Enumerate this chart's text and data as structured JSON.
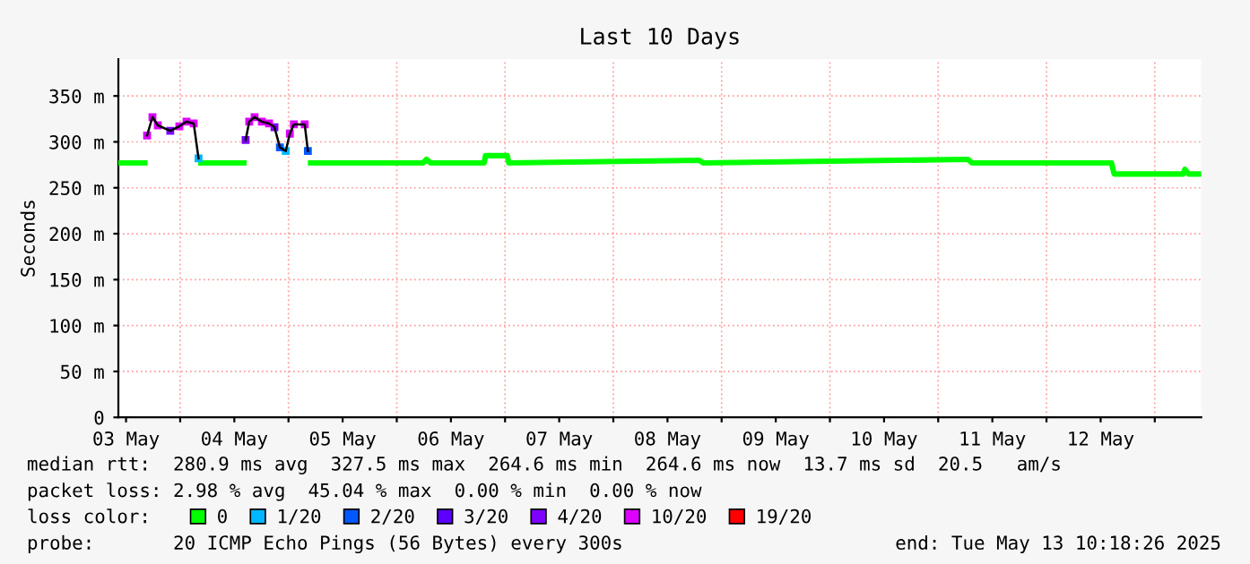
{
  "chart_data": {
    "type": "line",
    "title": "Last 10 Days",
    "ylabel": "Seconds",
    "x": [
      "2025-05-03T10:18",
      "2025-05-03T16:10",
      "2025-05-03T16:40",
      "2025-05-03T17:51",
      "2025-05-03T19:02",
      "2025-05-03T21:48",
      "2025-05-03T23:49",
      "2025-05-04T01:24",
      "2025-05-04T03:00",
      "2025-05-04T04:04",
      "2025-05-04T04:36",
      "2025-05-04T14:06",
      "2025-05-04T14:30",
      "2025-05-04T15:18",
      "2025-05-04T16:30",
      "2025-05-04T18:06",
      "2025-05-04T19:42",
      "2025-05-04T20:54",
      "2025-05-04T22:06",
      "2025-05-04T23:24",
      "2025-05-05T00:18",
      "2025-05-05T01:12",
      "2025-05-05T03:36",
      "2025-05-05T04:18",
      "2025-05-05T04:54",
      "2025-05-06T05:48",
      "2025-05-06T06:36",
      "2025-05-06T07:30",
      "2025-05-06T19:21",
      "2025-05-06T19:40",
      "2025-05-07T00:30",
      "2025-05-07T00:50",
      "2025-05-08T18:58",
      "2025-05-08T20:00",
      "2025-05-11T06:36",
      "2025-05-11T07:30",
      "2025-05-12T14:24",
      "2025-05-12T15:00",
      "2025-05-13T06:18",
      "2025-05-13T06:40",
      "2025-05-13T07:30",
      "2025-05-13T10:18"
    ],
    "series": [
      {
        "color": "#000000",
        "values": [
          null,
          null,
          307,
          327,
          318,
          312,
          317,
          322,
          320,
          282,
          null,
          null,
          302,
          322,
          327,
          322,
          320,
          316,
          294,
          290,
          309,
          319,
          319,
          290,
          null,
          null,
          null,
          null,
          null,
          null,
          null,
          null,
          null,
          null,
          null,
          null,
          null,
          null,
          null,
          null,
          null,
          null
        ]
      },
      {
        "name": "0",
        "color": "#00ff00",
        "values": [
          277,
          277,
          null,
          null,
          null,
          null,
          null,
          null,
          null,
          null,
          277,
          277,
          null,
          null,
          null,
          null,
          null,
          null,
          null,
          null,
          null,
          null,
          null,
          null,
          277,
          277,
          281,
          277,
          277,
          285,
          285,
          277,
          280,
          277,
          281,
          277,
          277,
          265,
          265,
          270,
          265,
          265
        ]
      },
      {
        "type": "scatter",
        "marker": "square",
        "name": "1/20",
        "color": "#00b8ff",
        "x": [
          "2025-05-04T04:04",
          "2025-05-04T23:24"
        ],
        "values": [
          282,
          290
        ]
      },
      {
        "type": "scatter",
        "marker": "square",
        "name": "2/20",
        "color": "#0059ff",
        "x": [
          "2025-05-04T22:06",
          "2025-05-05T04:18"
        ],
        "values": [
          294,
          290
        ]
      },
      {
        "type": "scatter",
        "name": "3/20",
        "color": "#5e00ff",
        "values": [
          null,
          null,
          null,
          null,
          null,
          null,
          null,
          null,
          null,
          null,
          null,
          null,
          null,
          null,
          null,
          null,
          null,
          null,
          null,
          null,
          null,
          null,
          null,
          null,
          null,
          null,
          null,
          null,
          null,
          null,
          null,
          null,
          null,
          null,
          null,
          null,
          null,
          null,
          null,
          null,
          null,
          null
        ]
      },
      {
        "type": "scatter",
        "marker": "square",
        "name": "4/20",
        "color": "#7e00ff",
        "x": [
          "2025-05-03T21:48",
          "2025-05-04T14:30",
          "2025-05-04T20:54"
        ],
        "values": [
          312,
          302,
          316
        ]
      },
      {
        "type": "scatter",
        "marker": "square",
        "name": "10/20",
        "color": "#dd00ff",
        "x": [
          "2025-05-03T16:40",
          "2025-05-03T17:51",
          "2025-05-03T19:02",
          "2025-05-03T23:49",
          "2025-05-04T01:24",
          "2025-05-04T03:00",
          "2025-05-04T15:18",
          "2025-05-04T16:30",
          "2025-05-04T18:06",
          "2025-05-04T19:42",
          "2025-05-05T00:18",
          "2025-05-05T01:12",
          "2025-05-05T03:36"
        ],
        "values": [
          307,
          327,
          318,
          317,
          322,
          320,
          322,
          327,
          322,
          320,
          309,
          319,
          319
        ]
      },
      {
        "type": "scatter",
        "name": "19/20",
        "color": "#ff0000",
        "values": [
          null,
          null,
          null,
          null,
          null,
          null,
          null,
          null,
          null,
          null,
          null,
          null,
          null,
          null,
          null,
          null,
          null,
          null,
          null,
          null,
          null,
          null,
          null,
          null,
          null,
          null,
          null,
          null,
          null,
          null,
          null,
          null,
          null,
          null,
          null,
          null,
          null,
          null,
          null,
          null,
          null,
          null
        ]
      }
    ],
    "xlim": [
      "2025-05-03T10:18",
      "2025-05-13T10:18"
    ],
    "xticks": [
      {
        "value": "2025-05-03T12:00",
        "label": "03 May"
      },
      {
        "value": "2025-05-04T00:00",
        "label": null
      },
      {
        "value": "2025-05-04T12:00",
        "label": "04 May"
      },
      {
        "value": "2025-05-05T00:00",
        "label": null
      },
      {
        "value": "2025-05-05T12:00",
        "label": "05 May"
      },
      {
        "value": "2025-05-06T00:00",
        "label": null
      },
      {
        "value": "2025-05-06T12:00",
        "label": "06 May"
      },
      {
        "value": "2025-05-07T00:00",
        "label": null
      },
      {
        "value": "2025-05-07T12:00",
        "label": "07 May"
      },
      {
        "value": "2025-05-08T00:00",
        "label": null
      },
      {
        "value": "2025-05-08T12:00",
        "label": "08 May"
      },
      {
        "value": "2025-05-09T00:00",
        "label": null
      },
      {
        "value": "2025-05-09T12:00",
        "label": "09 May"
      },
      {
        "value": "2025-05-10T00:00",
        "label": null
      },
      {
        "value": "2025-05-10T12:00",
        "label": "10 May"
      },
      {
        "value": "2025-05-11T00:00",
        "label": null
      },
      {
        "value": "2025-05-11T12:00",
        "label": "11 May"
      },
      {
        "value": "2025-05-12T00:00",
        "label": null
      },
      {
        "value": "2025-05-12T12:00",
        "label": "12 May"
      },
      {
        "value": "2025-05-13T00:00",
        "label": null
      }
    ],
    "ylim": [
      0,
      390
    ],
    "yticks": [
      0,
      {
        "value": 50,
        "label": "50 m"
      },
      {
        "value": 100,
        "label": "100 m"
      },
      {
        "value": 150,
        "label": "150 m"
      },
      {
        "value": 200,
        "label": "200 m"
      },
      {
        "value": 250,
        "label": "250 m"
      },
      {
        "value": 300,
        "label": "300 m"
      },
      {
        "value": 350,
        "label": "350 m"
      }
    ],
    "grid": true,
    "legend": "bottom",
    "legend_title": "loss color:",
    "annotations": [
      "median rtt:  280.9 ms avg  327.5 ms max  264.6 ms min  264.6 ms now  13.7 ms sd  20.5   am/s",
      "packet loss: 2.98 % avg  45.04 % max  0.00 % min  0.00 % now",
      "probe:       20 ICMP Echo Pings (56 Bytes) every 300s",
      "end: Tue May 13 10:18:26 2025"
    ]
  }
}
